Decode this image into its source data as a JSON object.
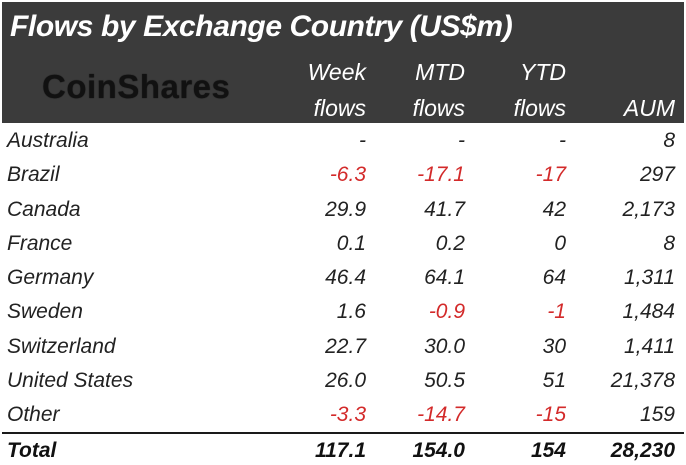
{
  "chart_data": {
    "type": "table",
    "title": "Flows by Exchange Country (US$m)",
    "logo": "CoinShares",
    "columns": [
      {
        "line1": "Week",
        "line2": "flows"
      },
      {
        "line1": "MTD",
        "line2": "flows"
      },
      {
        "line1": "YTD",
        "line2": "flows"
      },
      {
        "line1": "",
        "line2": "AUM"
      }
    ],
    "rows": [
      {
        "country": "Australia",
        "week": "-",
        "mtd": "-",
        "ytd": "-",
        "aum": "8"
      },
      {
        "country": "Brazil",
        "week": "-6.3",
        "mtd": "-17.1",
        "ytd": "-17",
        "aum": "297"
      },
      {
        "country": "Canada",
        "week": "29.9",
        "mtd": "41.7",
        "ytd": "42",
        "aum": "2,173"
      },
      {
        "country": "France",
        "week": "0.1",
        "mtd": "0.2",
        "ytd": "0",
        "aum": "8"
      },
      {
        "country": "Germany",
        "week": "46.4",
        "mtd": "64.1",
        "ytd": "64",
        "aum": "1,311"
      },
      {
        "country": "Sweden",
        "week": "1.6",
        "mtd": "-0.9",
        "ytd": "-1",
        "aum": "1,484"
      },
      {
        "country": "Switzerland",
        "week": "22.7",
        "mtd": "30.0",
        "ytd": "30",
        "aum": "1,411"
      },
      {
        "country": "United States",
        "week": "26.0",
        "mtd": "50.5",
        "ytd": "51",
        "aum": "21,378"
      },
      {
        "country": "Other",
        "week": "-3.3",
        "mtd": "-14.7",
        "ytd": "-15",
        "aum": "159"
      }
    ],
    "total": {
      "label": "Total",
      "week": "117.1",
      "mtd": "154.0",
      "ytd": "154",
      "aum": "28,230"
    }
  },
  "colors": {
    "header_bg": "#3b3b3b",
    "header_text": "#ffffff",
    "negative": "#d32a2a",
    "body_text": "#222222"
  }
}
